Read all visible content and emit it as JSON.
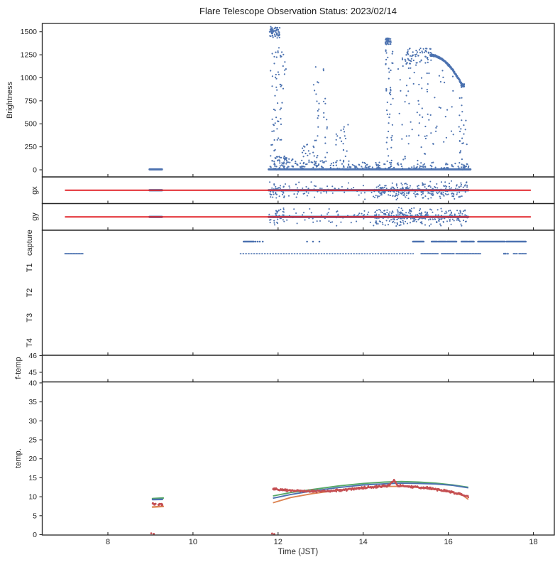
{
  "title": "Flare Telescope Observation Status: 2023/02/14",
  "xlabel": "Time (JST)",
  "colors": {
    "scatter_blue": "#4c72b0",
    "line_green": "#55a868",
    "line_orange": "#dd8452",
    "noisy_red": "#c44e52",
    "guide_red": "#e2262b",
    "axis": "#262626"
  },
  "chart_data": {
    "type": "scatter",
    "x_axis": {
      "label": "Time (JST)",
      "ticks": [
        8,
        10,
        12,
        14,
        16,
        18
      ],
      "range_hours": [
        6.46,
        18.49
      ]
    },
    "panels": {
      "brightness": {
        "ylabel": "Brightness",
        "yticks": [
          0,
          250,
          500,
          750,
          1000,
          1250,
          1500
        ],
        "ylim": [
          -77,
          1590
        ],
        "zero_line_segments": [
          [
            8.98,
            9.27
          ],
          [
            11.78,
            16.52
          ]
        ],
        "clusters": [
          {
            "x": [
              11.8,
              12.04
            ],
            "y": [
              1450,
              1555
            ],
            "n": 55
          },
          {
            "x": [
              11.82,
              12.1
            ],
            "y": [
              30,
              1450
            ],
            "n": 60
          },
          {
            "x": [
              11.9,
              12.35
            ],
            "y": [
              0,
              150
            ],
            "n": 50
          },
          {
            "x": [
              12.05,
              12.2
            ],
            "y": [
              850,
              1300
            ],
            "n": 10
          },
          {
            "x": [
              12.55,
              12.75
            ],
            "y": [
              0,
              300
            ],
            "n": 18
          },
          {
            "x": [
              12.8,
              12.97
            ],
            "y": [
              100,
              1170
            ],
            "n": 22
          },
          {
            "x": [
              13.05,
              13.17
            ],
            "y": [
              100,
              1100
            ],
            "n": 14
          },
          {
            "x": [
              12.4,
              13.4
            ],
            "y": [
              0,
              100
            ],
            "n": 50
          },
          {
            "x": [
              13.35,
              13.67
            ],
            "y": [
              0,
              520
            ],
            "n": 28
          },
          {
            "x": [
              13.5,
              14.4
            ],
            "y": [
              0,
              90
            ],
            "n": 40
          },
          {
            "x": [
              14.52,
              14.66
            ],
            "y": [
              1360,
              1430
            ],
            "n": 40
          },
          {
            "x": [
              14.53,
              14.7
            ],
            "y": [
              50,
              1350
            ],
            "n": 45
          },
          {
            "x": [
              14.77,
              15.61
            ],
            "y": [
              80,
              1150
            ],
            "n": 55
          },
          {
            "x": [
              14.89,
              15.61
            ],
            "y": [
              1150,
              1320
            ],
            "n": 70
          },
          {
            "x": [
              15.61,
              16.14
            ],
            "y": [
              250,
              1100
            ],
            "n": 22
          },
          {
            "x": [
              16.22,
              16.44
            ],
            "y": [
              0,
              850
            ],
            "n": 26
          },
          {
            "x": [
              16.3,
              16.38
            ],
            "y": [
              895,
              935
            ],
            "n": 22
          },
          {
            "x": [
              14.45,
              16.5
            ],
            "y": [
              0,
              80
            ],
            "n": 60
          },
          {
            "x": [
              11.8,
              16.5
            ],
            "y": [
              0,
              40
            ],
            "n": 80
          }
        ],
        "arc": {
          "x_start": 15.58,
          "y_start": 1245,
          "x_end": 16.32,
          "drop": 320,
          "n": 160
        }
      },
      "gx": {
        "ylabel": "gx",
        "red_line": [
          6.99,
          17.94
        ],
        "center_segments": [
          [
            8.98,
            9.27
          ],
          [
            11.78,
            16.47
          ]
        ],
        "scatter": [
          {
            "x": [
              11.78,
              16.45
            ],
            "n": 140,
            "spread": 0.8
          },
          {
            "x": [
              14.25,
              16.45
            ],
            "n": 200,
            "spread": 0.85
          },
          {
            "x": [
              11.8,
              12.15
            ],
            "n": 30,
            "spread": 0.9
          }
        ]
      },
      "gy": {
        "ylabel": "gy",
        "red_line": [
          6.99,
          17.94
        ],
        "center_segments": [
          [
            8.98,
            9.27
          ],
          [
            11.78,
            16.47
          ]
        ],
        "scatter": [
          {
            "x": [
              11.78,
              16.45
            ],
            "n": 140,
            "spread": 0.85
          },
          {
            "x": [
              14.25,
              16.45
            ],
            "n": 200,
            "spread": 0.9
          },
          {
            "x": [
              11.8,
              12.15
            ],
            "n": 30,
            "spread": 0.95
          }
        ]
      },
      "capture": {
        "categories": [
          "capture",
          "T1",
          "T2",
          "T3",
          "T4"
        ],
        "rows": [
          {
            "name": "capture",
            "segments": [
              [
                11.19,
                11.43
              ],
              [
                15.17,
                15.42
              ],
              [
                15.61,
                15.74
              ],
              [
                15.77,
                15.94
              ],
              [
                15.97,
                16.19
              ],
              [
                16.31,
                16.45
              ],
              [
                16.48,
                16.6
              ],
              [
                16.7,
                17.33
              ],
              [
                17.37,
                17.82
              ]
            ],
            "dots": [
              11.47,
              11.52,
              11.57,
              11.64,
              12.68,
              12.82,
              12.97
            ]
          },
          {
            "name": "T1",
            "segments": [
              [
                6.99,
                7.43
              ],
              [
                15.36,
                15.76
              ],
              [
                15.84,
                16.15
              ],
              [
                16.18,
                16.76
              ],
              [
                17.53,
                17.62
              ],
              [
                17.66,
                17.83
              ]
            ],
            "dashed_line": [
              11.1,
              15.19
            ],
            "dots": [
              17.31,
              17.35,
              17.4
            ]
          }
        ]
      },
      "f_temp": {
        "ylabel": "f-temp",
        "yticks": [
          46,
          45
        ],
        "series": []
      },
      "temp": {
        "ylabel": "temp.",
        "yticks": [
          0,
          5,
          10,
          15,
          20,
          25,
          30,
          35,
          40
        ],
        "series": [
          {
            "name": "green",
            "color_key": "line_green",
            "points": [
              [
                11.88,
                10.2
              ],
              [
                12.3,
                11.1
              ],
              [
                12.8,
                11.9
              ],
              [
                13.4,
                12.8
              ],
              [
                14.0,
                13.5
              ],
              [
                14.5,
                13.85
              ],
              [
                14.9,
                14.0
              ],
              [
                15.3,
                13.85
              ],
              [
                15.7,
                13.6
              ],
              [
                16.1,
                13.1
              ],
              [
                16.47,
                12.5
              ]
            ],
            "early": [
              [
                9.05,
                9.5
              ],
              [
                9.3,
                9.65
              ]
            ]
          },
          {
            "name": "blue",
            "color_key": "scatter_blue",
            "points": [
              [
                11.88,
                9.6
              ],
              [
                12.3,
                10.6
              ],
              [
                12.8,
                11.5
              ],
              [
                13.4,
                12.4
              ],
              [
                14.0,
                13.1
              ],
              [
                14.5,
                13.4
              ],
              [
                14.9,
                13.6
              ],
              [
                15.3,
                13.5
              ],
              [
                15.7,
                13.35
              ],
              [
                16.1,
                13.0
              ],
              [
                16.47,
                12.35
              ]
            ],
            "early": [
              [
                9.05,
                9.25
              ],
              [
                9.28,
                9.3
              ]
            ]
          },
          {
            "name": "orange",
            "color_key": "line_orange",
            "points": [
              [
                11.88,
                8.4
              ],
              [
                12.3,
                9.8
              ],
              [
                12.8,
                10.8
              ],
              [
                13.4,
                11.7
              ],
              [
                14.0,
                12.4
              ],
              [
                14.5,
                12.7
              ],
              [
                14.9,
                12.75
              ],
              [
                15.3,
                12.45
              ],
              [
                15.7,
                11.9
              ],
              [
                16.1,
                11.1
              ],
              [
                16.35,
                10.3
              ],
              [
                16.47,
                9.3
              ]
            ],
            "early": [
              [
                9.05,
                7.3
              ],
              [
                9.3,
                7.45
              ]
            ]
          },
          {
            "name": "red-noisy",
            "color_key": "noisy_red",
            "noisy": true,
            "noise": 0.18,
            "points": [
              [
                11.88,
                12.0
              ],
              [
                12.1,
                11.8
              ],
              [
                12.4,
                11.6
              ],
              [
                12.8,
                11.4
              ],
              [
                13.2,
                11.5
              ],
              [
                13.6,
                11.9
              ],
              [
                14.0,
                12.3
              ],
              [
                14.35,
                12.7
              ],
              [
                14.6,
                12.9
              ],
              [
                14.72,
                14.3
              ],
              [
                14.82,
                13.0
              ],
              [
                15.0,
                12.8
              ],
              [
                15.3,
                12.5
              ],
              [
                15.6,
                12.2
              ],
              [
                15.9,
                11.6
              ],
              [
                16.15,
                11.0
              ],
              [
                16.35,
                10.4
              ],
              [
                16.47,
                9.9
              ]
            ],
            "early": [
              [
                9.05,
                8.1
              ],
              [
                9.28,
                7.95
              ]
            ]
          }
        ],
        "red_zero_marks": [
          [
            9.02,
            0.35
          ],
          [
            9.08,
            0.2
          ],
          [
            11.86,
            0.3
          ],
          [
            11.91,
            0.15
          ]
        ]
      }
    }
  }
}
